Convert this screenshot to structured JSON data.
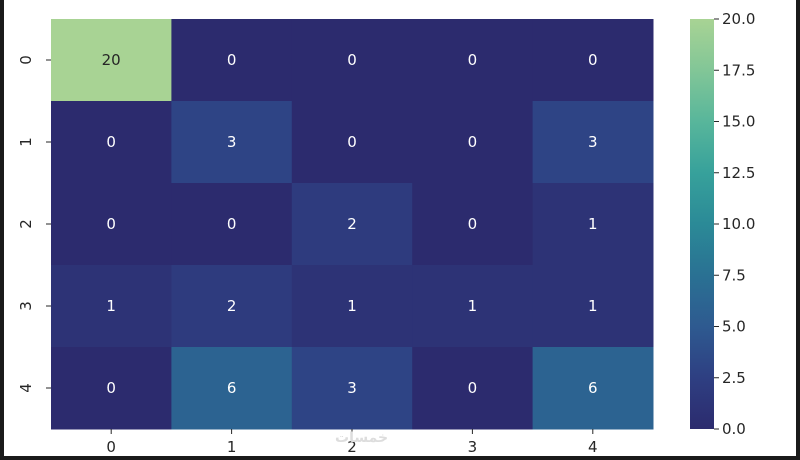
{
  "chart_data": {
    "type": "heatmap",
    "title": "",
    "xlabel": "",
    "ylabel": "",
    "x_categories": [
      "0",
      "1",
      "2",
      "3",
      "4"
    ],
    "y_categories": [
      "0",
      "1",
      "2",
      "3",
      "4"
    ],
    "values": [
      [
        20,
        0,
        0,
        0,
        0
      ],
      [
        0,
        3,
        0,
        0,
        3
      ],
      [
        0,
        0,
        2,
        0,
        1
      ],
      [
        1,
        2,
        1,
        1,
        1
      ],
      [
        0,
        6,
        3,
        0,
        6
      ]
    ],
    "colormap": "crest",
    "vmin": 0,
    "vmax": 20,
    "colorbar": {
      "ticks": [
        0,
        2.5,
        5,
        7.5,
        10,
        12.5,
        15,
        17.5,
        20
      ],
      "tick_labels": [
        "0.0",
        "2.5",
        "5.0",
        "7.5",
        "10.0",
        "12.5",
        "15.0",
        "17.5",
        "20.0"
      ]
    },
    "annotations": true
  },
  "watermark": "خمسات",
  "colors": {
    "low": "#2c3172",
    "mid": "#2a7b96",
    "high": "#a5cd90"
  }
}
